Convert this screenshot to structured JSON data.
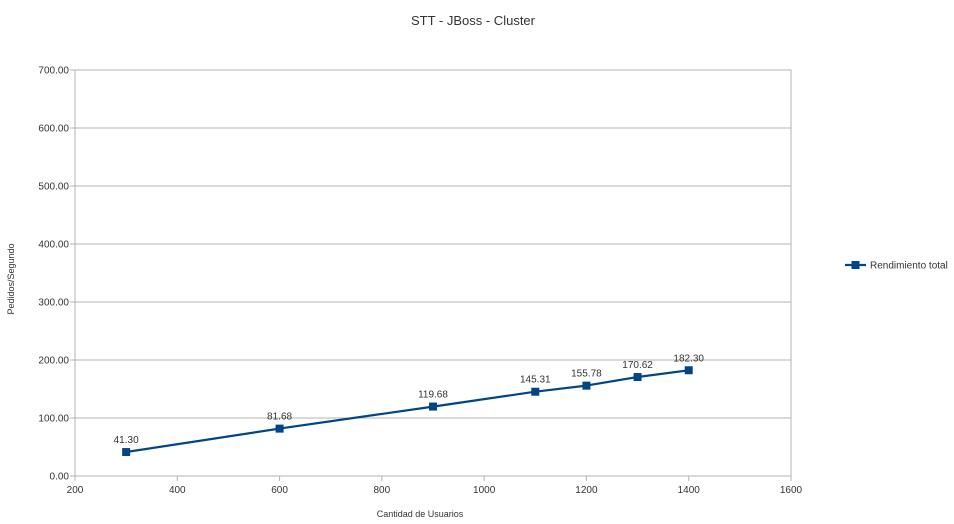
{
  "chart_data": {
    "type": "line",
    "title": "STT - JBoss - Cluster",
    "xlabel": "Cantidad de Usuarios",
    "ylabel": "Pedidos/Segundo",
    "xlim": [
      200,
      1600
    ],
    "ylim": [
      0,
      700
    ],
    "x_ticks": [
      "200",
      "400",
      "600",
      "800",
      "1000",
      "1200",
      "1400",
      "1600"
    ],
    "y_ticks": [
      "0.00",
      "100.00",
      "200.00",
      "300.00",
      "400.00",
      "500.00",
      "600.00",
      "700.00"
    ],
    "grid": true,
    "legend_position": "right",
    "series": [
      {
        "name": "Rendimiento total",
        "color": "#004586",
        "marker": "square",
        "x": [
          300,
          600,
          900,
          1100,
          1200,
          1300,
          1400
        ],
        "values": [
          41.3,
          81.68,
          119.68,
          145.31,
          155.78,
          170.62,
          182.3
        ],
        "data_labels": [
          "41.30",
          "81.68",
          "119.68",
          "145.31",
          "155.78",
          "170.62",
          "182.30"
        ]
      }
    ]
  }
}
